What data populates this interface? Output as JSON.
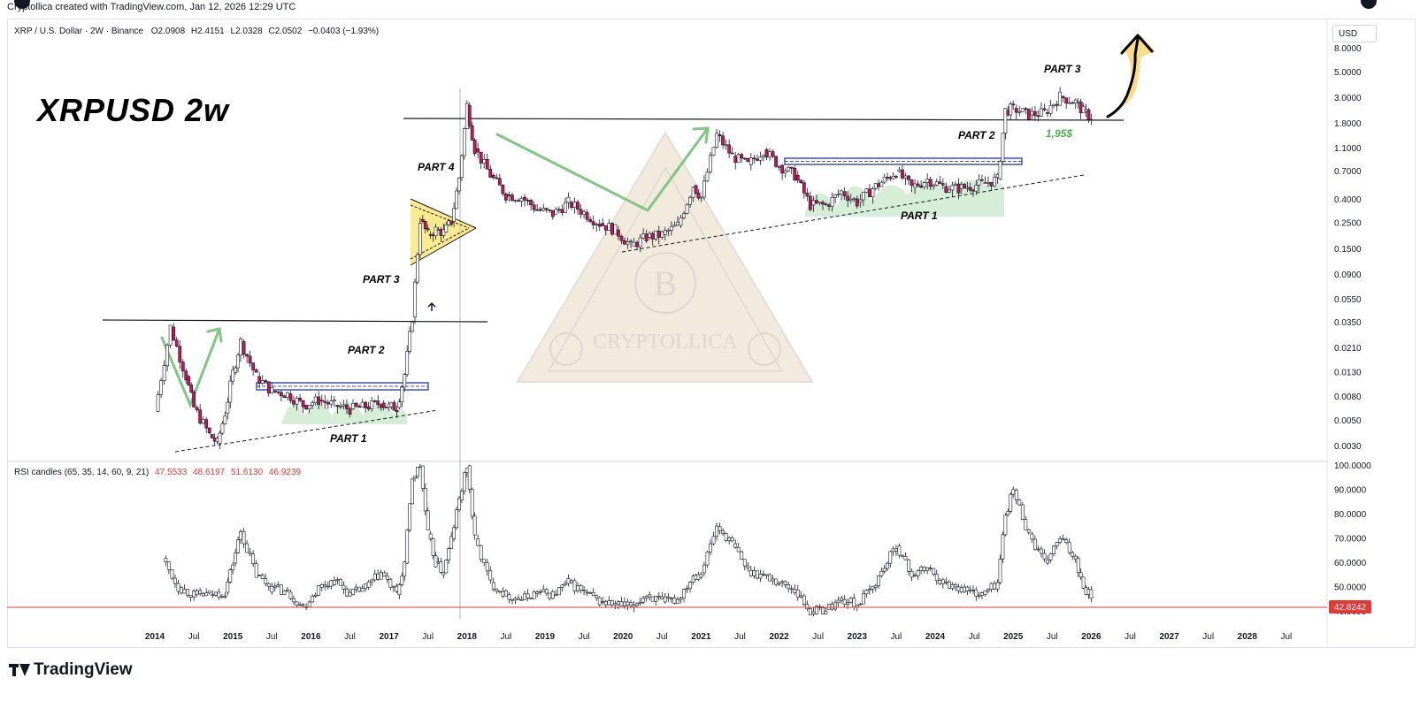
{
  "header": {
    "credit": "Cryptollica created with TradingView.com, Jan 12, 2026 12:29 UTC"
  },
  "legend": {
    "symbol": "XRP / U.S. Dollar · 2W · Binance",
    "open_label": "O",
    "open": "2.0908",
    "high_label": "H",
    "high": "2.4151",
    "low_label": "L",
    "low": "2.0328",
    "close_label": "C",
    "close": "2.0502",
    "change": "−0.0403 (−1.93%)"
  },
  "title_text": "XRPUSD 2w",
  "currency_button": "USD",
  "rsi_legend": {
    "name": "RSI candles (65, 35, 14, 60, 9, 21)",
    "v1": "47.5533",
    "v2": "48.6197",
    "v3": "51.6130",
    "v4": "46.9239"
  },
  "footer": {
    "brand": "TradingView"
  },
  "colors": {
    "background": "#ffffff",
    "up_candle": "#ffffff",
    "down_candle": "#c2185b",
    "wick": "#131722",
    "green_arrow": "#81c784",
    "green_shade": "#a5d6a7",
    "blue_box": "#3f51b5",
    "yellow_triangle": "#fdd835",
    "red_level": "#e53935",
    "annotation_green": "#4caf50"
  },
  "watermark": {
    "brand": "CRYPTOLLICA",
    "letter": "B"
  },
  "chart_data": [
    {
      "type": "candlestick",
      "title": "",
      "symbol": "XRPUSD",
      "timeframe": "2W",
      "y_scale": "log",
      "y_axis_ticks": [
        "8.0000",
        "5.0000",
        "3.0000",
        "1.8000",
        "1.1000",
        "0.7000",
        "0.4000",
        "0.2500",
        "0.1500",
        "0.0900",
        "0.0550",
        "0.0350",
        "0.0210",
        "0.0130",
        "0.0080",
        "0.0050",
        "0.0030"
      ],
      "x_axis_ticks": [
        "2014",
        "Jul",
        "2015",
        "Jul",
        "2016",
        "Jul",
        "2017",
        "Jul",
        "2018",
        "Jul",
        "2019",
        "Jul",
        "2020",
        "Jul",
        "2021",
        "Jul",
        "2022",
        "Jul",
        "2023",
        "Jul",
        "2024",
        "Jul",
        "2025",
        "Jul",
        "2026",
        "Jul",
        "2027",
        "Jul",
        "2028",
        "Jul"
      ],
      "series": [
        {
          "values": [
            [
              2014.0,
              0.006
            ],
            [
              2014.2,
              0.032
            ],
            [
              2014.4,
              0.012
            ],
            [
              2014.5,
              0.0065
            ],
            [
              2014.7,
              0.0038
            ],
            [
              2014.8,
              0.0032
            ],
            [
              2014.9,
              0.0058
            ],
            [
              2015.0,
              0.013
            ],
            [
              2015.1,
              0.024
            ],
            [
              2015.3,
              0.012
            ],
            [
              2015.5,
              0.009
            ],
            [
              2015.7,
              0.0085
            ],
            [
              2015.9,
              0.0068
            ],
            [
              2016.1,
              0.0075
            ],
            [
              2016.3,
              0.0068
            ],
            [
              2016.5,
              0.0063
            ],
            [
              2016.7,
              0.0066
            ],
            [
              2016.9,
              0.0071
            ],
            [
              2017.0,
              0.0066
            ],
            [
              2017.1,
              0.0065
            ],
            [
              2017.2,
              0.0125
            ],
            [
              2017.3,
              0.039
            ],
            [
              2017.4,
              0.27
            ],
            [
              2017.5,
              0.2
            ],
            [
              2017.6,
              0.22
            ],
            [
              2017.7,
              0.21
            ],
            [
              2017.8,
              0.26
            ],
            [
              2017.9,
              0.62
            ],
            [
              2018.0,
              2.6
            ],
            [
              2018.1,
              1.1
            ],
            [
              2018.3,
              0.65
            ],
            [
              2018.5,
              0.44
            ],
            [
              2018.7,
              0.42
            ],
            [
              2018.9,
              0.33
            ],
            [
              2019.1,
              0.3
            ],
            [
              2019.3,
              0.38
            ],
            [
              2019.5,
              0.31
            ],
            [
              2019.7,
              0.25
            ],
            [
              2019.9,
              0.22
            ],
            [
              2020.1,
              0.16
            ],
            [
              2020.3,
              0.19
            ],
            [
              2020.5,
              0.2
            ],
            [
              2020.7,
              0.24
            ],
            [
              2020.9,
              0.53
            ],
            [
              2021.0,
              0.42
            ],
            [
              2021.2,
              1.45
            ],
            [
              2021.4,
              0.95
            ],
            [
              2021.6,
              0.8
            ],
            [
              2021.8,
              1.08
            ],
            [
              2022.0,
              0.79
            ],
            [
              2022.2,
              0.65
            ],
            [
              2022.4,
              0.36
            ],
            [
              2022.6,
              0.36
            ],
            [
              2022.8,
              0.47
            ],
            [
              2023.0,
              0.38
            ],
            [
              2023.2,
              0.5
            ],
            [
              2023.5,
              0.7
            ],
            [
              2023.7,
              0.51
            ],
            [
              2023.9,
              0.6
            ],
            [
              2024.1,
              0.52
            ],
            [
              2024.3,
              0.5
            ],
            [
              2024.6,
              0.55
            ],
            [
              2024.8,
              0.6
            ],
            [
              2024.9,
              2.35
            ],
            [
              2025.0,
              2.45
            ],
            [
              2025.2,
              2.15
            ],
            [
              2025.4,
              2.25
            ],
            [
              2025.6,
              3.1
            ],
            [
              2025.8,
              2.78
            ],
            [
              2025.9,
              2.3
            ],
            [
              2026.0,
              2.05
            ]
          ]
        }
      ],
      "annotations": [
        "PART 1",
        "PART 2",
        "PART 3",
        "PART 4",
        "PART 1",
        "PART 2",
        "PART 3",
        "1,95$"
      ]
    },
    {
      "type": "candlestick",
      "title": "RSI candles (65, 35, 14, 60, 9, 21)",
      "y_axis_ticks": [
        "100.0000",
        "90.0000",
        "80.0000",
        "70.0000",
        "60.0000",
        "50.0000",
        "40.0000"
      ],
      "level_label": "42.8242",
      "level": 42.8242,
      "series": [
        {
          "values": [
            [
              2014.1,
              62
            ],
            [
              2014.3,
              50
            ],
            [
              2014.5,
              47
            ],
            [
              2014.7,
              47
            ],
            [
              2014.9,
              48
            ],
            [
              2015.0,
              60
            ],
            [
              2015.1,
              73
            ],
            [
              2015.3,
              55
            ],
            [
              2015.5,
              50
            ],
            [
              2015.7,
              48
            ],
            [
              2015.9,
              42
            ],
            [
              2016.1,
              50
            ],
            [
              2016.3,
              53
            ],
            [
              2016.5,
              47
            ],
            [
              2016.7,
              50
            ],
            [
              2016.9,
              56
            ],
            [
              2017.1,
              47
            ],
            [
              2017.2,
              60
            ],
            [
              2017.3,
              95
            ],
            [
              2017.4,
              100
            ],
            [
              2017.5,
              72
            ],
            [
              2017.6,
              60
            ],
            [
              2017.7,
              56
            ],
            [
              2017.8,
              70
            ],
            [
              2017.9,
              86
            ],
            [
              2018.0,
              100
            ],
            [
              2018.1,
              70
            ],
            [
              2018.3,
              52
            ],
            [
              2018.5,
              47
            ],
            [
              2018.7,
              45
            ],
            [
              2018.9,
              48
            ],
            [
              2019.1,
              47
            ],
            [
              2019.3,
              52
            ],
            [
              2019.5,
              48
            ],
            [
              2019.7,
              44
            ],
            [
              2019.9,
              43
            ],
            [
              2020.1,
              42
            ],
            [
              2020.3,
              47
            ],
            [
              2020.5,
              44
            ],
            [
              2020.7,
              45
            ],
            [
              2020.9,
              55
            ],
            [
              2021.0,
              56
            ],
            [
              2021.2,
              75
            ],
            [
              2021.4,
              68
            ],
            [
              2021.6,
              57
            ],
            [
              2021.8,
              55
            ],
            [
              2022.0,
              52
            ],
            [
              2022.2,
              49
            ],
            [
              2022.4,
              40
            ],
            [
              2022.6,
              41
            ],
            [
              2022.8,
              45
            ],
            [
              2023.0,
              43
            ],
            [
              2023.2,
              50
            ],
            [
              2023.5,
              67
            ],
            [
              2023.7,
              55
            ],
            [
              2023.9,
              58
            ],
            [
              2024.1,
              52
            ],
            [
              2024.3,
              50
            ],
            [
              2024.6,
              47
            ],
            [
              2024.8,
              52
            ],
            [
              2024.9,
              80
            ],
            [
              2025.0,
              90
            ],
            [
              2025.2,
              72
            ],
            [
              2025.4,
              60
            ],
            [
              2025.6,
              70
            ],
            [
              2025.8,
              62
            ],
            [
              2025.9,
              50
            ],
            [
              2026.0,
              47
            ]
          ]
        }
      ]
    }
  ]
}
